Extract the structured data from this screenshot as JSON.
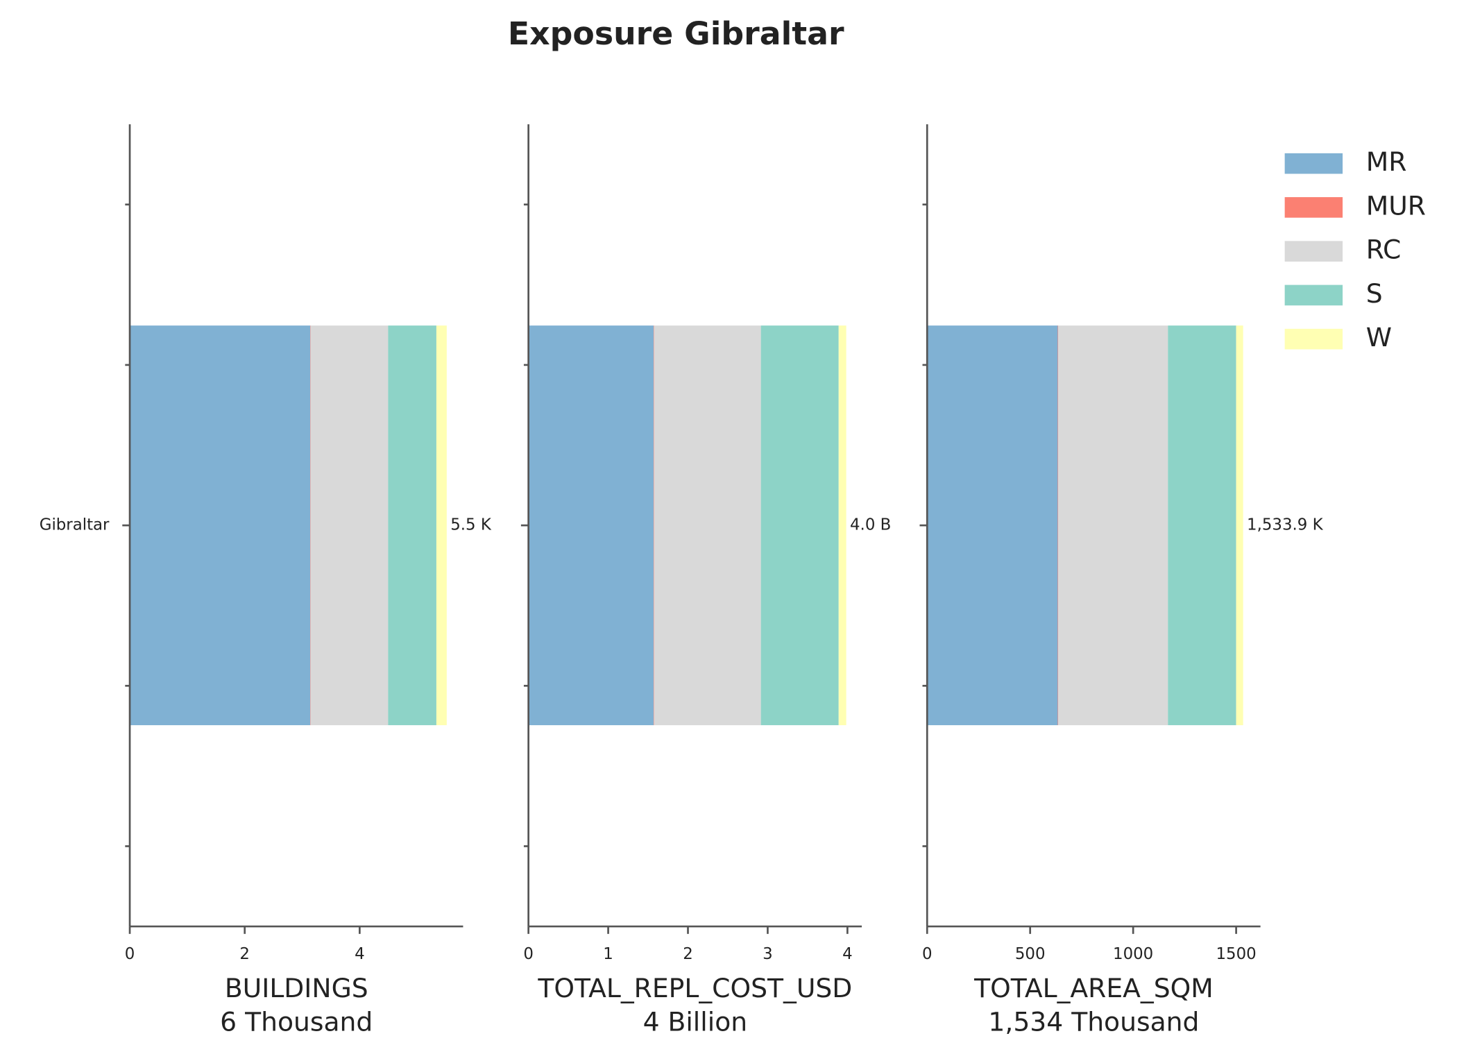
{
  "title": "Exposure Gibraltar",
  "legend": "upper right",
  "chart_data": [
    {
      "type": "bar",
      "orientation": "horizontal",
      "stacked": true,
      "categories": [
        "Gibraltar"
      ],
      "ylim": [
        -2.5,
        2.5
      ],
      "xlim": [
        0,
        5.8
      ],
      "xticks": [
        0,
        2,
        4
      ],
      "xlabel": "BUILDINGS",
      "subtitle": "6 Thousand",
      "value_label": "5.5 K",
      "series": [
        {
          "name": "MR",
          "color": "#80b1d3",
          "values": [
            3.14
          ]
        },
        {
          "name": "MUR",
          "color": "#fb8072",
          "values": [
            0.005
          ]
        },
        {
          "name": "RC",
          "color": "#d9d9d9",
          "values": [
            1.35
          ]
        },
        {
          "name": "S",
          "color": "#8dd3c7",
          "values": [
            0.84
          ]
        },
        {
          "name": "W",
          "color": "#ffffb3",
          "values": [
            0.18
          ]
        }
      ]
    },
    {
      "type": "bar",
      "orientation": "horizontal",
      "stacked": true,
      "categories": [
        null
      ],
      "ylim": [
        -2.5,
        2.5
      ],
      "xlim": [
        0,
        4.18
      ],
      "xticks": [
        0,
        1,
        2,
        3,
        4
      ],
      "xlabel": "TOTAL_REPL_COST_USD",
      "subtitle": "4 Billion",
      "value_label": "4.0 B",
      "series": [
        {
          "name": "MR",
          "color": "#80b1d3",
          "values": [
            1.57
          ]
        },
        {
          "name": "MUR",
          "color": "#fb8072",
          "values": [
            0.005
          ]
        },
        {
          "name": "RC",
          "color": "#d9d9d9",
          "values": [
            1.34
          ]
        },
        {
          "name": "S",
          "color": "#8dd3c7",
          "values": [
            0.975
          ]
        },
        {
          "name": "W",
          "color": "#ffffb3",
          "values": [
            0.095
          ]
        }
      ]
    },
    {
      "type": "bar",
      "orientation": "horizontal",
      "stacked": true,
      "categories": [
        null
      ],
      "ylim": [
        -2.5,
        2.5
      ],
      "xlim": [
        0,
        1618
      ],
      "xticks": [
        0,
        500,
        1000,
        1500
      ],
      "xlabel": "TOTAL_AREA_SQM",
      "subtitle": "1,534 Thousand",
      "value_label": "1,533.9 K",
      "series": [
        {
          "name": "MR",
          "color": "#80b1d3",
          "values": [
            634
          ]
        },
        {
          "name": "MUR",
          "color": "#fb8072",
          "values": [
            2
          ]
        },
        {
          "name": "RC",
          "color": "#d9d9d9",
          "values": [
            533
          ]
        },
        {
          "name": "S",
          "color": "#8dd3c7",
          "values": [
            331
          ]
        },
        {
          "name": "W",
          "color": "#ffffb3",
          "values": [
            33.9
          ]
        }
      ]
    }
  ]
}
